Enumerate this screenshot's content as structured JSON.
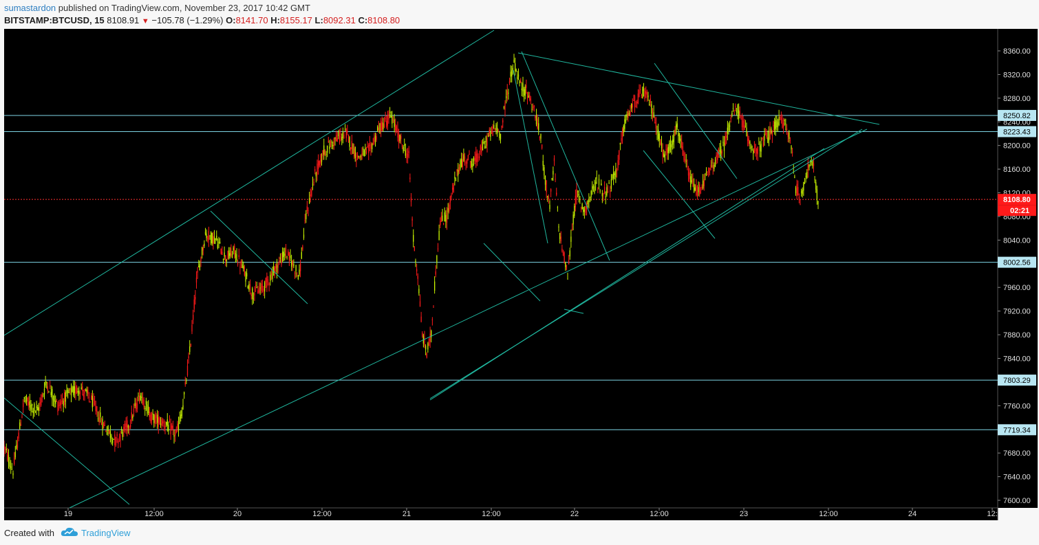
{
  "header": {
    "author": "sumastardon",
    "published_text": "published on TradingView.com, November 23, 2017 10:42 GMT",
    "symbol": "BITSTAMP:BTCUSD, 15",
    "last": "8108.91",
    "change": "−105.78 (−1.29%)",
    "o_label": "O:",
    "o_value": "8141.70",
    "h_label": "H:",
    "h_value": "8155.17",
    "l_label": "L:",
    "l_value": "8092.31",
    "c_label": "C:",
    "c_value": "8108.80"
  },
  "footer": {
    "created_with": "Created with",
    "brand": "TradingView"
  },
  "colors": {
    "background": "#000000",
    "up": "#c8f200",
    "down": "#ff1a1a",
    "trendline": "#20b8a0",
    "hline": "#7fd6e6",
    "price_line": "#ff3030",
    "label_fill": "#b8e6f2"
  },
  "chart_data": {
    "type": "candlestick",
    "timeframe": "15",
    "ylim": [
      7590,
      8400
    ],
    "y_ticks": [
      "8360.00",
      "8320.00",
      "8280.00",
      "8240.00",
      "8200.00",
      "8160.00",
      "8120.00",
      "8080.00",
      "8040.00",
      "8000.00",
      "7960.00",
      "7920.00",
      "7880.00",
      "7840.00",
      "7800.00",
      "7760.00",
      "7720.00",
      "7680.00",
      "7640.00",
      "7600.00"
    ],
    "x_ticks": [
      "19",
      "12:00",
      "20",
      "12:00",
      "21",
      "12:00",
      "22",
      "12:00",
      "23",
      "12:00",
      "24",
      "12:"
    ],
    "horizontal_levels": [
      "8250.82",
      "8223.43",
      "8002.56",
      "7803.29",
      "7719.34"
    ],
    "last_price": "8108.80",
    "countdown": "02:21",
    "anchors": [
      [
        0,
        7690
      ],
      [
        8,
        7650
      ],
      [
        18,
        7770
      ],
      [
        30,
        7750
      ],
      [
        38,
        7800
      ],
      [
        48,
        7760
      ],
      [
        58,
        7780
      ],
      [
        68,
        7790
      ],
      [
        78,
        7770
      ],
      [
        88,
        7730
      ],
      [
        100,
        7700
      ],
      [
        112,
        7730
      ],
      [
        122,
        7780
      ],
      [
        132,
        7740
      ],
      [
        144,
        7730
      ],
      [
        154,
        7710
      ],
      [
        160,
        7760
      ],
      [
        166,
        7850
      ],
      [
        172,
        7970
      ],
      [
        180,
        8050
      ],
      [
        190,
        8040
      ],
      [
        198,
        8010
      ],
      [
        206,
        8020
      ],
      [
        214,
        7990
      ],
      [
        222,
        7950
      ],
      [
        232,
        7960
      ],
      [
        242,
        7990
      ],
      [
        252,
        8020
      ],
      [
        258,
        8000
      ],
      [
        264,
        7980
      ],
      [
        270,
        8080
      ],
      [
        278,
        8150
      ],
      [
        286,
        8190
      ],
      [
        296,
        8210
      ],
      [
        306,
        8220
      ],
      [
        316,
        8180
      ],
      [
        326,
        8190
      ],
      [
        336,
        8230
      ],
      [
        346,
        8250
      ],
      [
        354,
        8210
      ],
      [
        362,
        8180
      ],
      [
        366,
        8040
      ],
      [
        370,
        7980
      ],
      [
        374,
        7880
      ],
      [
        378,
        7850
      ],
      [
        382,
        7880
      ],
      [
        386,
        7990
      ],
      [
        390,
        8070
      ],
      [
        396,
        8080
      ],
      [
        402,
        8130
      ],
      [
        408,
        8170
      ],
      [
        414,
        8180
      ],
      [
        420,
        8170
      ],
      [
        426,
        8190
      ],
      [
        432,
        8210
      ],
      [
        438,
        8230
      ],
      [
        444,
        8220
      ],
      [
        450,
        8290
      ],
      [
        456,
        8340
      ],
      [
        462,
        8300
      ],
      [
        468,
        8290
      ],
      [
        474,
        8260
      ],
      [
        480,
        8210
      ],
      [
        484,
        8140
      ],
      [
        488,
        8100
      ],
      [
        492,
        8170
      ],
      [
        496,
        8060
      ],
      [
        500,
        8020
      ],
      [
        504,
        7980
      ],
      [
        508,
        8060
      ],
      [
        512,
        8120
      ],
      [
        518,
        8090
      ],
      [
        524,
        8110
      ],
      [
        530,
        8140
      ],
      [
        536,
        8120
      ],
      [
        542,
        8130
      ],
      [
        548,
        8160
      ],
      [
        554,
        8230
      ],
      [
        560,
        8260
      ],
      [
        566,
        8280
      ],
      [
        572,
        8290
      ],
      [
        578,
        8270
      ],
      [
        584,
        8230
      ],
      [
        590,
        8180
      ],
      [
        596,
        8200
      ],
      [
        602,
        8230
      ],
      [
        608,
        8180
      ],
      [
        614,
        8140
      ],
      [
        620,
        8120
      ],
      [
        626,
        8140
      ],
      [
        632,
        8160
      ],
      [
        638,
        8180
      ],
      [
        644,
        8200
      ],
      [
        650,
        8250
      ],
      [
        656,
        8260
      ],
      [
        662,
        8230
      ],
      [
        668,
        8200
      ],
      [
        674,
        8190
      ],
      [
        680,
        8210
      ],
      [
        686,
        8220
      ],
      [
        692,
        8240
      ],
      [
        698,
        8240
      ],
      [
        704,
        8200
      ],
      [
        708,
        8130
      ],
      [
        712,
        8110
      ],
      [
        716,
        8140
      ],
      [
        720,
        8170
      ],
      [
        724,
        8160
      ],
      [
        728,
        8100
      ]
    ],
    "candle_count": 729,
    "annotations": {
      "trendlines": 13,
      "description": "ascending channel lines, descending wedge lines, converging triangle"
    }
  }
}
